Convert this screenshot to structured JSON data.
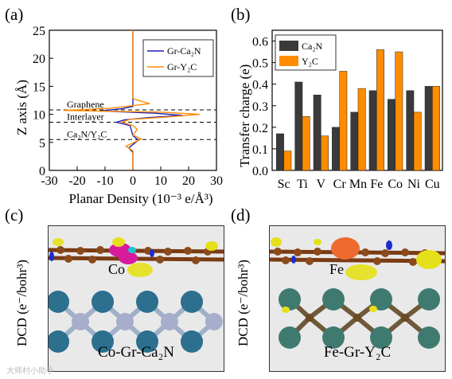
{
  "panel_labels": [
    "(a)",
    "(b)",
    "(c)",
    "(d)"
  ],
  "chart_data": [
    {
      "type": "line",
      "xlabel": "Planar Density (10⁻³ e/Å³)",
      "ylabel": "Z axis (Å)",
      "xlim": [
        -30,
        30
      ],
      "ylim": [
        0,
        25
      ],
      "xticks": [
        -30,
        -20,
        -10,
        0,
        10,
        20,
        30
      ],
      "yticks": [
        0,
        5,
        10,
        15,
        20,
        25
      ],
      "legend_position": "top-right",
      "series": [
        {
          "name": "Gr-Ca₂N",
          "color": "#1f1fbf",
          "points": [
            [
              0,
              0.1
            ],
            [
              0,
              3.2
            ],
            [
              -1.5,
              4.0
            ],
            [
              0,
              4.6
            ],
            [
              2,
              5.4
            ],
            [
              0,
              6.2
            ],
            [
              -1,
              8.0
            ],
            [
              -6,
              8.6
            ],
            [
              -3,
              9.0
            ],
            [
              5,
              9.4
            ],
            [
              18,
              9.8
            ],
            [
              8,
              10.2
            ],
            [
              -12,
              10.6
            ],
            [
              -4,
              11.0
            ],
            [
              0,
              11.4
            ],
            [
              0,
              25
            ]
          ]
        },
        {
          "name": "Gr-Y₂C",
          "color": "#ff8c00",
          "points": [
            [
              0,
              0.1
            ],
            [
              0,
              3.5
            ],
            [
              -2.5,
              4.3
            ],
            [
              0,
              4.9
            ],
            [
              3,
              5.6
            ],
            [
              0,
              6.3
            ],
            [
              1.5,
              7.3
            ],
            [
              0,
              8.0
            ],
            [
              -4,
              8.6
            ],
            [
              -1,
              9.1
            ],
            [
              12,
              9.5
            ],
            [
              24,
              10.0
            ],
            [
              10,
              10.4
            ],
            [
              -25,
              10.7
            ],
            [
              -8,
              11.1
            ],
            [
              6,
              11.9
            ],
            [
              0,
              12.8
            ],
            [
              0,
              25
            ]
          ]
        }
      ],
      "reference_lines": [
        {
          "y": 10.8,
          "label": "Graphene"
        },
        {
          "y": 8.6,
          "label": "Interlayer"
        },
        {
          "y": 5.5,
          "label": "Ca₂N/Y₂C"
        }
      ]
    },
    {
      "type": "bar",
      "ylabel": "Transfer charge (e)",
      "ylim": [
        0,
        0.65
      ],
      "yticks": [
        0,
        0.1,
        0.2,
        0.3,
        0.4,
        0.5,
        0.6
      ],
      "legend_position": "top-left",
      "categories": [
        "Sc",
        "Ti",
        "V",
        "Cr",
        "Mn",
        "Fe",
        "Co",
        "Ni",
        "Cu"
      ],
      "series": [
        {
          "name": "Ca₂N",
          "color": "#3a3a3a",
          "values": [
            0.17,
            0.41,
            0.35,
            0.2,
            0.27,
            0.37,
            0.33,
            0.37,
            0.39
          ]
        },
        {
          "name": "Y₂C",
          "color": "#ff8c00",
          "values": [
            0.09,
            0.25,
            0.16,
            0.46,
            0.38,
            0.56,
            0.55,
            0.27,
            0.39
          ]
        }
      ]
    }
  ],
  "panel_c": {
    "ylabel": "DCD (e⁻/bohr³)",
    "atom_label": "Co",
    "caption": "Co-Gr-Ca₂N"
  },
  "panel_d": {
    "ylabel": "DCD (e⁻/bohr³)",
    "atom_label": "Fe",
    "caption": "Fe-Gr-Y₂C"
  },
  "watermark": "大师村小助手"
}
